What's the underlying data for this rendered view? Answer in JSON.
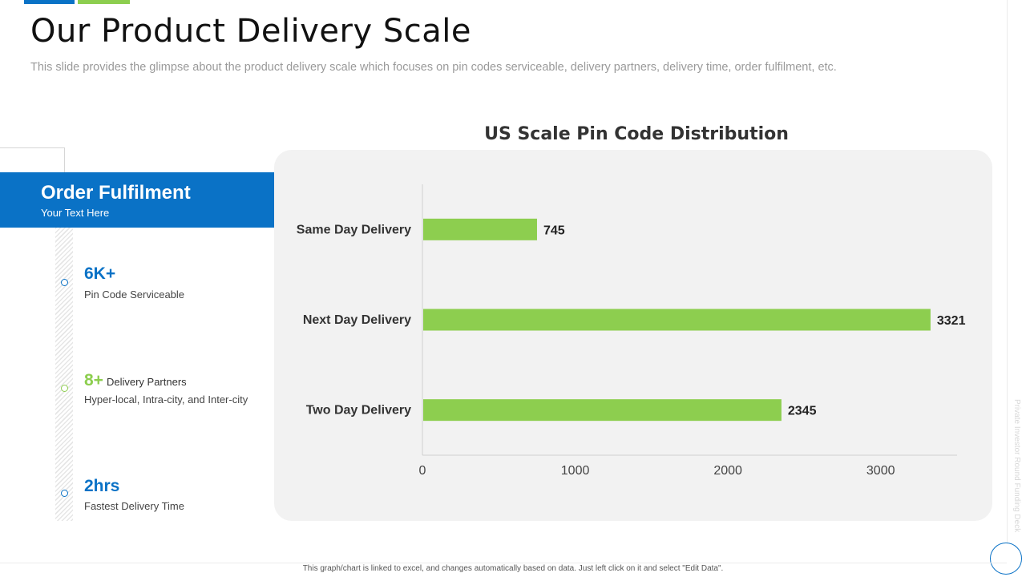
{
  "slide": {
    "title": "Our Product Delivery Scale",
    "subtitle": "This slide provides the glimpse about the product delivery scale which focuses on pin codes serviceable, delivery partners, delivery time, order fulfilment, etc.",
    "side_text": "Private Investor Round Funding Deck",
    "footer_note": "This graph/chart is linked to excel, and changes automatically based on data. Just left click on it and select \"Edit Data\".",
    "colors": {
      "blue": "#0a72c6",
      "green": "#8dce4f"
    }
  },
  "fulfilment": {
    "title": "Order Fulfilment",
    "subtitle": "Your Text Here",
    "stats": [
      {
        "value": "6K+",
        "label": "Pin Code Serviceable",
        "color": "blue"
      },
      {
        "value": "8+",
        "inline": "Delivery Partners",
        "label": "Hyper-local, Intra-city, and Inter-city",
        "color": "green"
      },
      {
        "value": "2hrs",
        "label": "Fastest Delivery Time",
        "color": "blue"
      }
    ]
  },
  "chart_data": {
    "type": "bar",
    "orientation": "horizontal",
    "title": "US Scale Pin Code Distribution",
    "categories": [
      "Same Day Delivery",
      "Next Day Delivery",
      "Two Day Delivery"
    ],
    "values": [
      745,
      3321,
      2345
    ],
    "xlim": [
      0,
      3500
    ],
    "xticks": [
      0,
      1000,
      2000,
      3000
    ],
    "bar_color": "#8dce4f",
    "grid": false,
    "data_labels": true
  }
}
